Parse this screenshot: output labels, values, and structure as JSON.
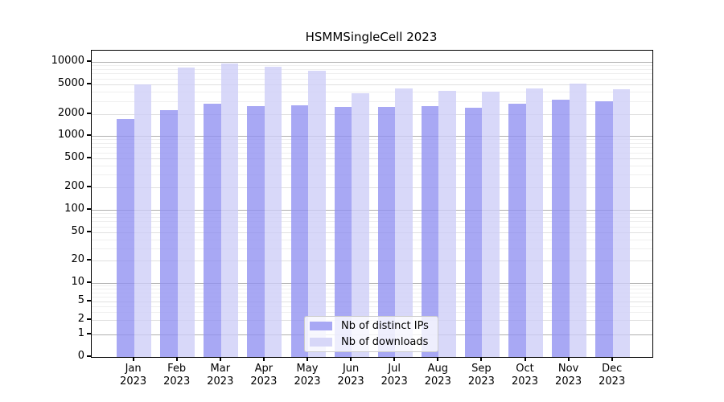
{
  "title": "HSMMSingleCell 2023",
  "chart_data": {
    "type": "bar",
    "categories": [
      "Jan",
      "Feb",
      "Mar",
      "Apr",
      "May",
      "Jun",
      "Jul",
      "Aug",
      "Sep",
      "Oct",
      "Nov",
      "Dec"
    ],
    "year": "2023",
    "series": [
      {
        "name": "Nb of distinct IPs",
        "color": "#a8a8f4",
        "values": [
          1700,
          2290,
          2790,
          2590,
          2650,
          2520,
          2520,
          2590,
          2460,
          2790,
          3160,
          3000
        ]
      },
      {
        "name": "Nb of downloads",
        "color": "#d7d7f8",
        "values": [
          5000,
          8400,
          9500,
          8600,
          7600,
          3770,
          4380,
          4060,
          3960,
          4380,
          5100,
          4270
        ]
      }
    ],
    "title": "HSMMSingleCell 2023",
    "xlabel": "",
    "ylabel": "",
    "yscale": "symlog",
    "y_ticks": [
      0,
      1,
      2,
      5,
      10,
      20,
      50,
      100,
      200,
      500,
      1000,
      2000,
      5000,
      10000
    ],
    "ylim": [
      0,
      10000
    ],
    "grid": "on",
    "legend_position": "lower center"
  }
}
